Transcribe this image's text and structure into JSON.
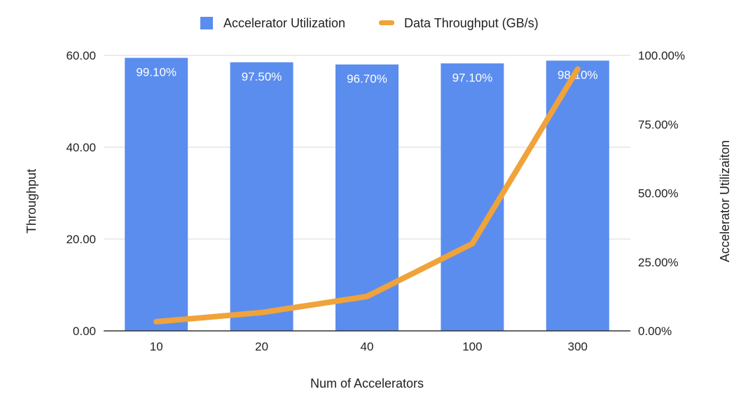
{
  "chart_data": {
    "type": "bar",
    "categories": [
      "10",
      "20",
      "40",
      "100",
      "300"
    ],
    "xlabel": "Num of Accelerators",
    "ylabel_left": "Throughput",
    "ylabel_right": "Accelerator Utilizaiton",
    "ylim_left": [
      0,
      60
    ],
    "ylim_right": [
      0,
      1
    ],
    "left_ticks": [
      "0.00",
      "20.00",
      "40.00",
      "60.00"
    ],
    "right_ticks": [
      "0.00%",
      "25.00%",
      "50.00%",
      "75.00%",
      "100.00%"
    ],
    "grid": true,
    "legend_position": "top",
    "series": [
      {
        "name": "Accelerator Utilization",
        "type": "bar",
        "axis": "right",
        "color": "#5b8def",
        "values": [
          0.991,
          0.975,
          0.967,
          0.971,
          0.981
        ],
        "labels": [
          "99.10%",
          "97.50%",
          "96.70%",
          "97.10%",
          "98.10%"
        ]
      },
      {
        "name": "Data Throughput (GB/s)",
        "type": "line",
        "axis": "left",
        "color": "#f0a33a",
        "values": [
          2.0,
          4.0,
          7.5,
          19.0,
          57.0
        ]
      }
    ]
  }
}
